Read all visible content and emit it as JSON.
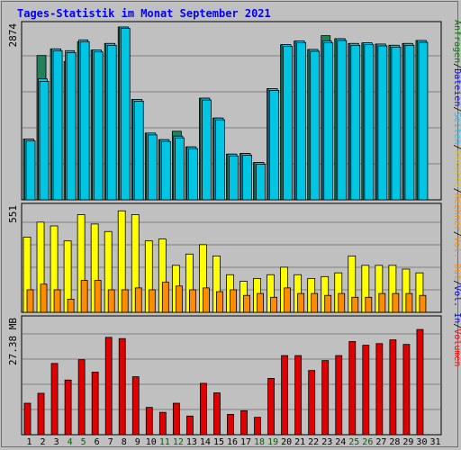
{
  "title": "Tages-Statistik im Monat September 2021",
  "colors": {
    "anfragen": "#23805a",
    "dateien": "#00d2ff",
    "seiten": "#00c6e4",
    "besuche": "#ffff00",
    "rechner": "#ff8c00",
    "volumen": "#e00000",
    "weekend_day": "#006400",
    "day": "#000000",
    "legend_text_anfragen": "#007f00",
    "legend_text_dateien": "#0000ff",
    "legend_text_seiten": "#00c8ff",
    "legend_text_besuche": "#e6c000",
    "legend_text_rechner": "#ff8c00",
    "legend_text_volumen": "#ff0000",
    "legend_text_sep": "#000000"
  },
  "chart_data": [
    {
      "type": "bar",
      "panel": "top",
      "ylabel": "2874",
      "ymax": 2874,
      "categories": [
        "1",
        "2",
        "3",
        "4",
        "5",
        "6",
        "7",
        "8",
        "9",
        "10",
        "11",
        "12",
        "13",
        "14",
        "15",
        "16",
        "17",
        "18",
        "19",
        "20",
        "21",
        "22",
        "23",
        "24",
        "25",
        "26",
        "27",
        "28",
        "29",
        "30",
        "31"
      ],
      "weekend_days": [
        "4",
        "5",
        "11",
        "12",
        "18",
        "19",
        "25",
        "26"
      ],
      "series": [
        {
          "name": "Anfragen",
          "values": [
            1010,
            2400,
            2510,
            2300,
            2630,
            2490,
            2600,
            2874,
            1670,
            1110,
            1000,
            1140,
            880,
            1690,
            1360,
            760,
            770,
            620,
            1850,
            2580,
            2640,
            2500,
            2730,
            2680,
            2600,
            2610,
            2590,
            2570,
            2600,
            2650,
            null
          ]
        },
        {
          "name": "Dateien",
          "values": [
            1010,
            2010,
            2510,
            2480,
            2660,
            2490,
            2600,
            2874,
            1670,
            1110,
            1000,
            1060,
            880,
            1690,
            1360,
            760,
            770,
            620,
            1850,
            2580,
            2640,
            2500,
            2640,
            2680,
            2600,
            2610,
            2590,
            2570,
            2600,
            2650,
            null
          ]
        },
        {
          "name": "Seiten",
          "values": [
            980,
            1970,
            2480,
            2450,
            2630,
            2460,
            2570,
            2850,
            1640,
            1080,
            970,
            1030,
            850,
            1660,
            1330,
            730,
            740,
            590,
            1820,
            2550,
            2610,
            2470,
            2610,
            2650,
            2570,
            2580,
            2560,
            2540,
            2570,
            2620,
            null
          ]
        }
      ]
    },
    {
      "type": "bar",
      "panel": "middle",
      "ylabel": "551",
      "ymax": 551,
      "categories": [
        "1",
        "2",
        "3",
        "4",
        "5",
        "6",
        "7",
        "8",
        "9",
        "10",
        "11",
        "12",
        "13",
        "14",
        "15",
        "16",
        "17",
        "18",
        "19",
        "20",
        "21",
        "22",
        "23",
        "24",
        "25",
        "26",
        "27",
        "28",
        "29",
        "30",
        "31"
      ],
      "series": [
        {
          "name": "Besuche",
          "values": [
            400,
            480,
            460,
            380,
            520,
            470,
            430,
            540,
            520,
            380,
            390,
            250,
            310,
            360,
            300,
            200,
            165,
            180,
            200,
            240,
            200,
            180,
            190,
            210,
            300,
            250,
            250,
            250,
            230,
            210,
            null
          ]
        },
        {
          "name": "Rechner",
          "values": [
            120,
            150,
            120,
            70,
            170,
            170,
            120,
            120,
            130,
            120,
            160,
            140,
            120,
            130,
            110,
            120,
            90,
            100,
            80,
            130,
            100,
            100,
            90,
            100,
            80,
            80,
            100,
            100,
            100,
            90,
            null
          ]
        }
      ]
    },
    {
      "type": "bar",
      "panel": "bottom",
      "ylabel": "27.38 MB",
      "ymax": 27.38,
      "categories": [
        "1",
        "2",
        "3",
        "4",
        "5",
        "6",
        "7",
        "8",
        "9",
        "10",
        "11",
        "12",
        "13",
        "14",
        "15",
        "16",
        "17",
        "18",
        "19",
        "20",
        "21",
        "22",
        "23",
        "24",
        "25",
        "26",
        "27",
        "28",
        "29",
        "30",
        "31"
      ],
      "series": [
        {
          "name": "Volumen",
          "values": [
            7.6,
            10.0,
            17.2,
            13.2,
            18.1,
            15.1,
            23.5,
            23.2,
            14.0,
            6.6,
            5.4,
            7.6,
            4.5,
            12.4,
            10.1,
            4.9,
            5.8,
            4.2,
            13.6,
            19.1,
            19.1,
            15.5,
            17.9,
            19.1,
            22.5,
            21.6,
            22.0,
            22.9,
            21.8,
            25.4,
            null
          ]
        }
      ]
    }
  ],
  "legend_right": [
    "Anfragen",
    "/",
    "Dateien",
    "/",
    "Seiten",
    "/",
    "Besuche",
    "/",
    "Rechner",
    "/",
    "Vol. Out",
    "/",
    "Vol. In",
    "/",
    "Volumen"
  ]
}
